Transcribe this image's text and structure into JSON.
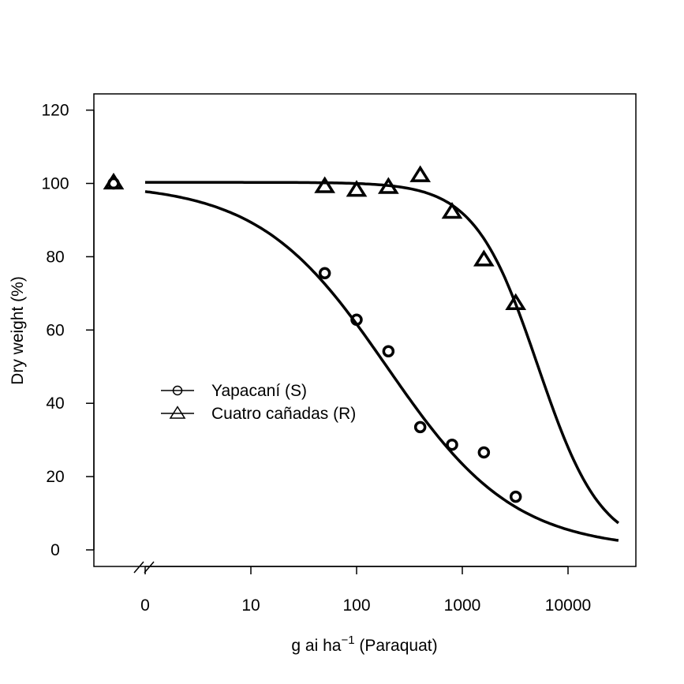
{
  "chart_data": {
    "type": "line",
    "xlabel_main": "g ai ha",
    "xlabel_sup": "−1",
    "xlabel_suffix": " (Paraquat)",
    "ylabel": "Dry weight (%)",
    "x_scale": "log10",
    "x_axis_break": true,
    "x_ticks": [
      {
        "value": 0,
        "label": "0"
      },
      {
        "value": 10,
        "label": "10"
      },
      {
        "value": 100,
        "label": "100"
      },
      {
        "value": 1000,
        "label": "1000"
      },
      {
        "value": 10000,
        "label": "10000"
      }
    ],
    "y_ticks": [
      0,
      20,
      40,
      60,
      80,
      100,
      120
    ],
    "ylim": [
      -4.5,
      124.5
    ],
    "grid": false,
    "legend_position": "center-left",
    "series": [
      {
        "name": "Yapacaní (S)",
        "marker": "circle",
        "points": [
          {
            "x": 0,
            "y": 100
          },
          {
            "x": 50,
            "y": 75.5
          },
          {
            "x": 100,
            "y": 62.8
          },
          {
            "x": 200,
            "y": 54.2
          },
          {
            "x": 400,
            "y": 33.5
          },
          {
            "x": 800,
            "y": 28.7
          },
          {
            "x": 1600,
            "y": 26.6
          },
          {
            "x": 3200,
            "y": 14.5
          }
        ],
        "fit": {
          "model": "log-logistic",
          "upper": 100,
          "lower": 0,
          "ed50": 193,
          "slope": 0.72,
          "x_from": 1,
          "x_to": 30000
        }
      },
      {
        "name": "Cuatro cañadas (R)",
        "marker": "triangle",
        "points": [
          {
            "x": 0,
            "y": 100.2
          },
          {
            "x": 50,
            "y": 99.2
          },
          {
            "x": 100,
            "y": 98.2
          },
          {
            "x": 200,
            "y": 99.0
          },
          {
            "x": 400,
            "y": 102.2
          },
          {
            "x": 800,
            "y": 92.2
          },
          {
            "x": 1600,
            "y": 79.2
          },
          {
            "x": 3200,
            "y": 67.3
          }
        ],
        "fit": {
          "model": "log-logistic",
          "upper": 100.3,
          "lower": 0,
          "ed50": 5200,
          "slope": 1.45,
          "x_from": 1,
          "x_to": 30000
        }
      }
    ]
  }
}
